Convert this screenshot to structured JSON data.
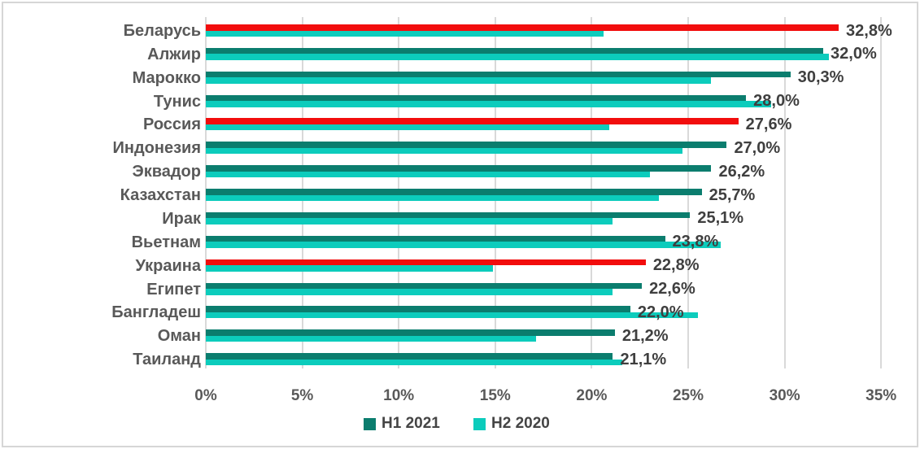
{
  "chart_data": {
    "type": "bar",
    "orientation": "horizontal-grouped",
    "title": "",
    "categories": [
      "Беларусь",
      "Алжир",
      "Марокко",
      "Тунис",
      "Россия",
      "Индонезия",
      "Эквадор",
      "Казахстан",
      "Ирак",
      "Вьетнам",
      "Украина",
      "Египет",
      "Бангладеш",
      "Оман",
      "Таиланд"
    ],
    "series": [
      {
        "name": "H1 2021",
        "color": "#0b7d6e",
        "highlight_color": "#f20d0d",
        "values": [
          32.8,
          32.0,
          30.3,
          28.0,
          27.6,
          27.0,
          26.2,
          25.7,
          25.1,
          23.8,
          22.8,
          22.6,
          22.0,
          21.2,
          21.1
        ]
      },
      {
        "name": "H2 2020",
        "color": "#0cccbc",
        "values": [
          20.6,
          32.3,
          26.2,
          29.3,
          20.9,
          24.7,
          23.0,
          23.5,
          21.1,
          26.7,
          14.9,
          21.1,
          25.5,
          17.1,
          21.6
        ]
      }
    ],
    "highlighted_categories": [
      "Беларусь",
      "Россия",
      "Украина"
    ],
    "data_labels": [
      "32,8%",
      "32,0%",
      "30,3%",
      "28,0%",
      "27,6%",
      "27,0%",
      "26,2%",
      "25,7%",
      "25,1%",
      "23,8%",
      "22,8%",
      "22,6%",
      "22,0%",
      "21,2%",
      "21,1%"
    ],
    "x_ticks": [
      "0%",
      "5%",
      "10%",
      "15%",
      "20%",
      "25%",
      "30%",
      "35%"
    ],
    "x_tick_values": [
      0,
      5,
      10,
      15,
      20,
      25,
      30,
      35
    ],
    "xlim": [
      0,
      35
    ],
    "grid": true,
    "legend_position": "bottom",
    "colors": {
      "gridline": "#d9d9d9",
      "category_text": "#595959",
      "data_label_text": "#3f3f3f",
      "axis_text": "#595959",
      "frame_border": "#d6d6d6",
      "background": "#ffffff"
    }
  }
}
